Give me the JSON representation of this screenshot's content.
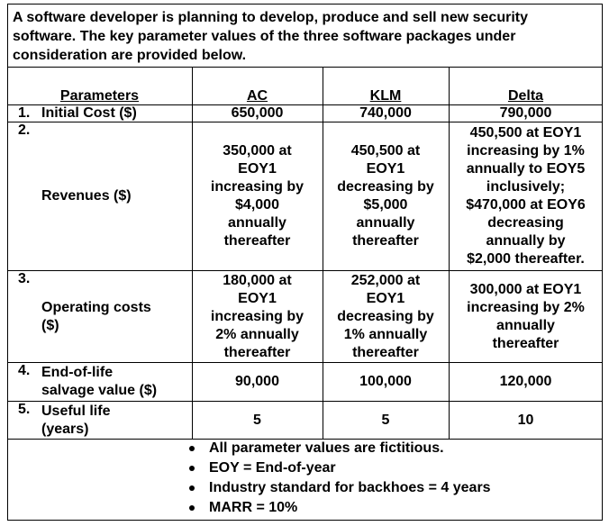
{
  "intro": "A software developer is planning to develop, produce and sell new security\nsoftware. The key parameter values of the three software packages under\nconsideration are provided below.",
  "table": {
    "header": [
      "Parameters",
      "AC",
      "KLM",
      "Delta"
    ],
    "rows": [
      [
        {
          "number": "1.",
          "label": "Initial Cost ($)"
        },
        "650,000",
        "740,000",
        "790,000"
      ],
      [
        {
          "number": "2.",
          "label": "Revenues ($)"
        },
        "350,000 at\nEOY1\nincreasing by\n$4,000\nannually\nthereafter",
        "450,500 at\nEOY1\ndecreasing by\n$5,000\nannually\nthereafter",
        "450,500 at EOY1\nincreasing by 1%\nannually to EOY5\ninclusively;\n$470,000 at EOY6\ndecreasing\nannually by\n$2,000 thereafter."
      ],
      [
        {
          "number": "3.",
          "label": "Operating costs\n($)"
        },
        "180,000 at\nEOY1\nincreasing by\n2% annually\nthereafter",
        "252,000 at\nEOY1\ndecreasing by\n1% annually\nthereafter",
        "300,000 at EOY1\nincreasing by 2%\nannually\nthereafter"
      ],
      [
        {
          "number": "4.",
          "label": "End-of-life\nsalvage value ($)"
        },
        "90,000",
        "100,000",
        "120,000"
      ],
      [
        {
          "number": "5.",
          "label": "Useful life\n(years)"
        },
        "5",
        "5",
        "10"
      ]
    ]
  },
  "notes": [
    "All parameter values are fictitious.",
    "EOY = End-of-year",
    "Industry standard for backhoes = 4 years",
    "MARR = 10%"
  ]
}
